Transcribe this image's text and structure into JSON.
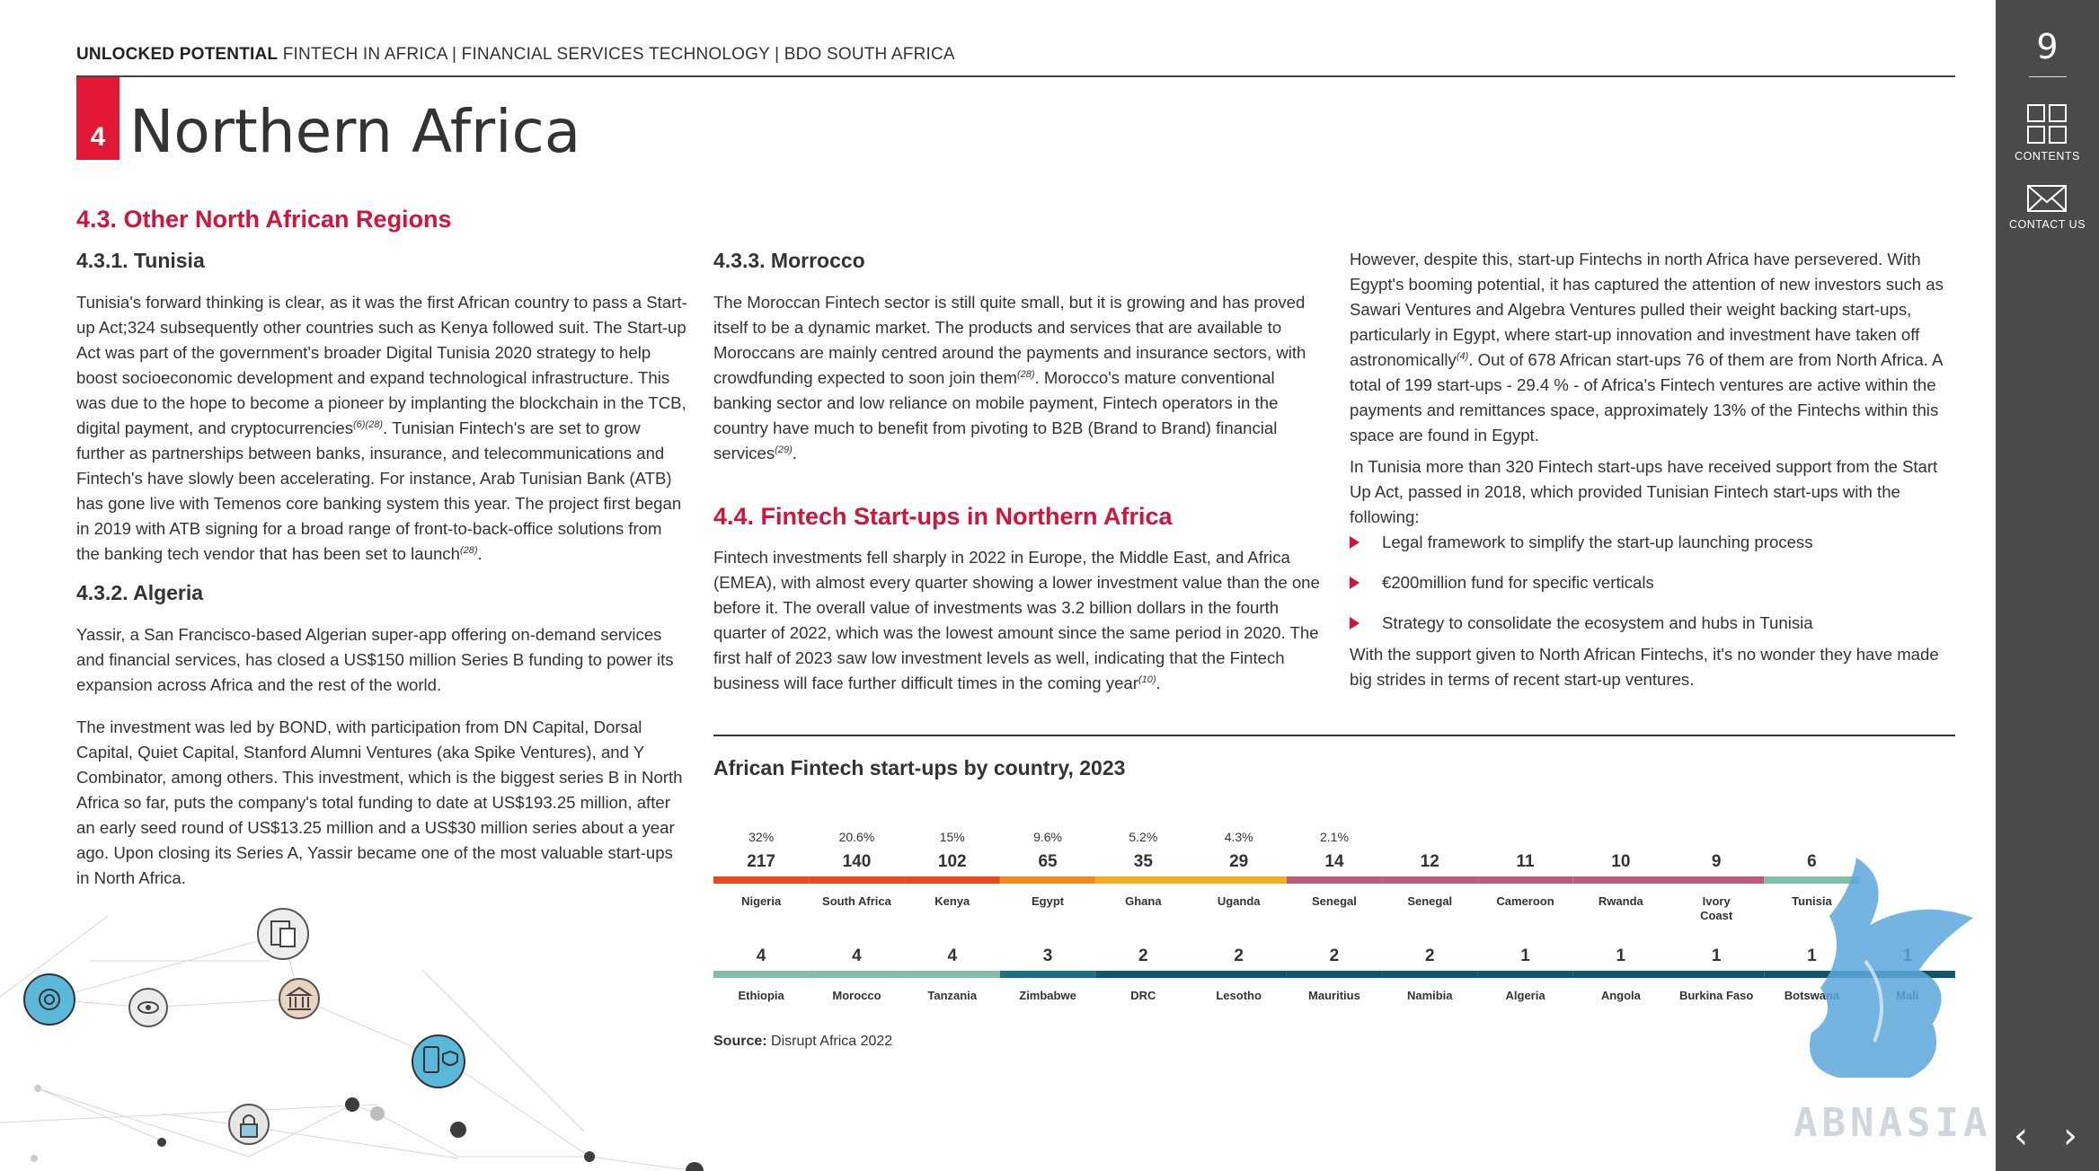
{
  "header": {
    "brand": "UNLOCKED POTENTIAL",
    "rest": " FINTECH IN AFRICA | FINANCIAL SERVICES TECHNOLOGY | BDO SOUTH AFRICA"
  },
  "chapter": {
    "number": "4",
    "title": "Northern Africa"
  },
  "section_4_3": {
    "heading": "4.3. Other North African Regions"
  },
  "tunisia": {
    "heading": "4.3.1. Tunisia",
    "p1": "Tunisia's forward thinking is clear, as it was the first African country to pass a Start-up Act;324 subsequently other countries such as Kenya followed suit. The Start-up Act was part of the government's broader Digital Tunisia 2020 strategy to help boost socioeconomic development and expand technological infrastructure. This was due to the hope to become a pioneer by implanting the blockchain in the TCB, digital payment, and cryptocurrencies",
    "p1_ref": "(6)(28)",
    "p1b": ". Tunisian Fintech's are set to grow further as partnerships between banks, insurance, and telecommunications and Fintech's have slowly been accelerating. For instance, Arab Tunisian Bank (ATB) has gone live with Temenos core banking system this year. The project first began in 2019 with ATB signing for a broad range of front-to-back-office solutions from the banking tech vendor that has been set to launch",
    "p1b_ref": "(28)",
    "p1b_end": "."
  },
  "algeria": {
    "heading": "4.3.2. Algeria",
    "p1": "Yassir, a San Francisco-based Algerian super-app offering on-demand services and financial services, has closed a US$150 million Series B funding to power its expansion across Africa and the rest of the world.",
    "p2": "The investment was led by BOND, with participation from DN Capital, Dorsal Capital, Quiet Capital, Stanford Alumni Ventures (aka Spike Ventures), and Y Combinator, among others. This investment, which is the biggest series B in North Africa so far, puts the company's total funding to date at US$193.25 million, after an early seed round of US$13.25 million and a US$30 million series about a year ago. Upon closing its Series A, Yassir became one of the most valuable start-ups in North Africa."
  },
  "morocco": {
    "heading": "4.3.3. Morrocco",
    "p1": "The Moroccan Fintech sector is still quite small, but it is growing and has proved itself to be a dynamic market. The products and services that are available to Moroccans are mainly centred around the payments and insurance sectors, with crowdfunding expected to soon join them",
    "p1_ref": "(28)",
    "p1b": ". Morocco's mature conventional banking sector and low reliance on mobile payment, Fintech operators in the country have much to benefit from pivoting to B2B (Brand to Brand) financial services",
    "p1b_ref": "(29)",
    "p1b_end": "."
  },
  "startups": {
    "heading": "4.4. Fintech Start-ups in Northern Africa",
    "p1": "Fintech investments fell sharply in 2022 in Europe, the Middle East, and Africa (EMEA), with almost every quarter showing a lower investment value than the one before it. The overall value of investments was 3.2 billion dollars in the fourth quarter of 2022, which was the lowest amount since the same period in 2020. The first half of 2023 saw low investment levels as well, indicating that the Fintech business will face further difficult times in the coming year",
    "p1_ref": "(10)",
    "p1_end": "."
  },
  "right_col": {
    "p1a": "However, despite this, start-up Fintechs in north Africa have persevered. With Egypt's booming potential, it has captured the attention of new investors such as Sawari Ventures and Algebra Ventures pulled their weight backing start-ups, particularly in Egypt, where start-up innovation and investment have taken off astronomically",
    "p1_ref": "(4)",
    "p1b": ". Out of 678 African start-ups 76 of them are from North Africa. A total of 199 start-ups - 29.4 % - of Africa's Fintech ventures are active within the payments and remittances space, approximately 13% of the Fintechs within this space are found in Egypt.",
    "p2": "In Tunisia more than 320 Fintech start-ups have received support from the Start Up Act, passed in 2018, which provided Tunisian Fintech start-ups with the following:",
    "bullets": [
      "Legal framework to simplify the start-up launching process",
      "€200million fund for specific verticals",
      "Strategy to consolidate the ecosystem and hubs in Tunisia"
    ],
    "p3": "With the support given to North African Fintechs, it's no wonder they have made big strides in terms of recent start-up ventures."
  },
  "chart_data": {
    "type": "bar",
    "title": "African Fintech start-ups by country, 2023",
    "rows": [
      {
        "items": [
          {
            "country": "Nigeria",
            "value": 217,
            "pct": "32%",
            "color": "#e8491d"
          },
          {
            "country": "South Africa",
            "value": 140,
            "pct": "20.6%",
            "color": "#e8491d"
          },
          {
            "country": "Kenya",
            "value": 102,
            "pct": "15%",
            "color": "#e8491d"
          },
          {
            "country": "Egypt",
            "value": 65,
            "pct": "9.6%",
            "color": "#f08a1c"
          },
          {
            "country": "Ghana",
            "value": 35,
            "pct": "5.2%",
            "color": "#f4ac20"
          },
          {
            "country": "Uganda",
            "value": 29,
            "pct": "4.3%",
            "color": "#f4ac20"
          },
          {
            "country": "Senegal",
            "value": 14,
            "pct": "2.1%",
            "color": "#c05a79"
          },
          {
            "country": "Senegal",
            "value": 12,
            "pct": "",
            "color": "#c05a79"
          },
          {
            "country": "Cameroon",
            "value": 11,
            "pct": "",
            "color": "#c05a79"
          },
          {
            "country": "Rwanda",
            "value": 10,
            "pct": "",
            "color": "#c05a79"
          },
          {
            "country": "Ivory Coast",
            "value": 9,
            "pct": "",
            "color": "#c05a79"
          },
          {
            "country": "Tunisia",
            "value": 6,
            "pct": "",
            "color": "#7fbfa8"
          }
        ]
      },
      {
        "items": [
          {
            "country": "Ethiopia",
            "value": 4,
            "pct": "",
            "color": "#7fbfa8"
          },
          {
            "country": "Morocco",
            "value": 4,
            "pct": "",
            "color": "#7fbfa8"
          },
          {
            "country": "Tanzania",
            "value": 4,
            "pct": "",
            "color": "#7fbfa8"
          },
          {
            "country": "Zimbabwe",
            "value": 3,
            "pct": "",
            "color": "#1f6e83"
          },
          {
            "country": "DRC",
            "value": 2,
            "pct": "",
            "color": "#10566a"
          },
          {
            "country": "Lesotho",
            "value": 2,
            "pct": "",
            "color": "#10566a"
          },
          {
            "country": "Mauritius",
            "value": 2,
            "pct": "",
            "color": "#10566a"
          },
          {
            "country": "Namibia",
            "value": 2,
            "pct": "",
            "color": "#10566a"
          },
          {
            "country": "Algeria",
            "value": 1,
            "pct": "",
            "color": "#10566a"
          },
          {
            "country": "Angola",
            "value": 1,
            "pct": "",
            "color": "#10566a"
          },
          {
            "country": "Burkina Faso",
            "value": 1,
            "pct": "",
            "color": "#10566a"
          },
          {
            "country": "Botswana",
            "value": 1,
            "pct": "",
            "color": "#10566a"
          },
          {
            "country": "Mali",
            "value": 1,
            "pct": "",
            "color": "#10566a"
          }
        ]
      }
    ]
  },
  "source": {
    "label": "Source:",
    "text": " Disrupt Africa 2022"
  },
  "sidebar": {
    "page_number": "9",
    "contents_label": "CONTENTS",
    "contact_label": "CONTACT US",
    "contents_icon": "grid-icon",
    "contact_icon": "envelope-icon",
    "prev_icon": "chevron-left-icon",
    "next_icon": "chevron-right-icon"
  },
  "watermark": {
    "text": "ABNASIA.ORG"
  }
}
